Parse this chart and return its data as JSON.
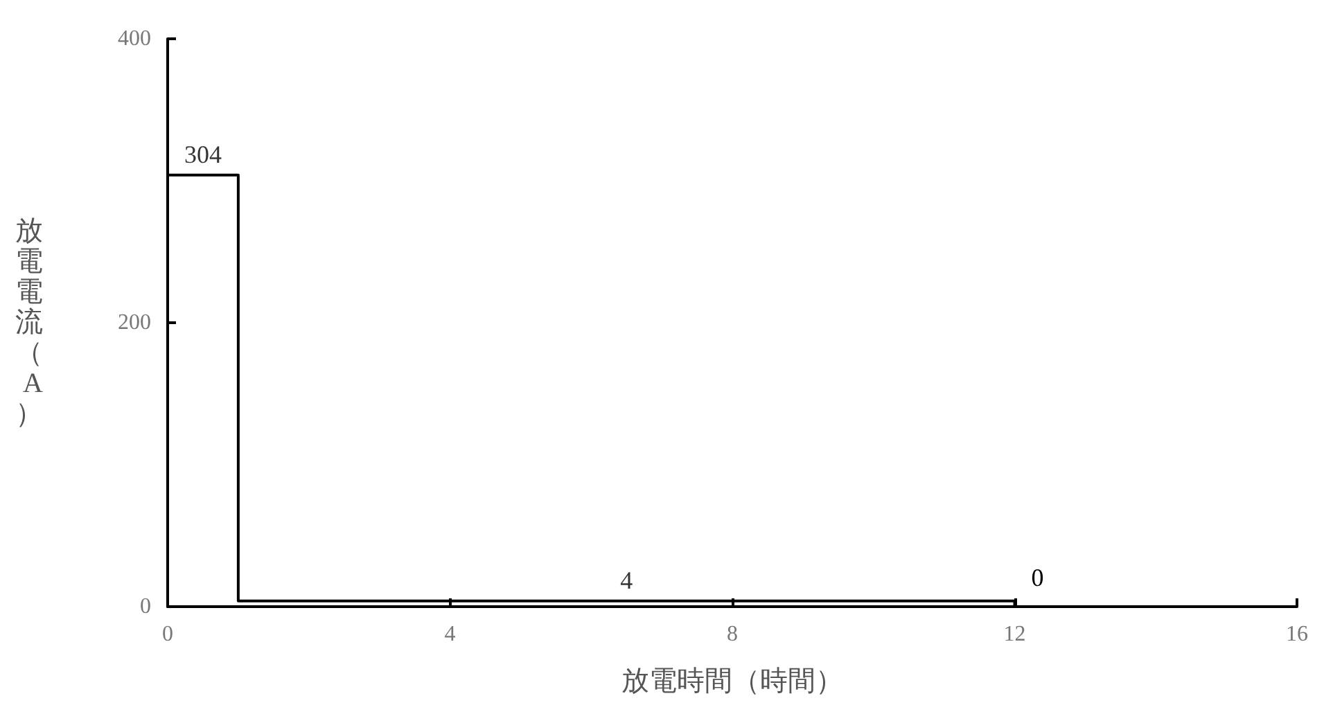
{
  "chart_data": {
    "type": "step",
    "xlabel": "放電時間（時間）",
    "ylabel": "放電電流（A）",
    "x": [
      0,
      1,
      12
    ],
    "series": [
      {
        "color": "#000000",
        "values": [
          304,
          4,
          0
        ]
      }
    ],
    "xlim": [
      0,
      16
    ],
    "xticks": [
      0,
      4,
      8,
      12,
      16
    ],
    "ylim": [
      0,
      400
    ],
    "yticks": [
      0,
      200,
      400
    ],
    "grid": false,
    "annotations": [
      {
        "text": "304",
        "x": 0.5,
        "y": 304
      },
      {
        "text": "4",
        "x": 6.5,
        "y": 4
      },
      "0"
    ]
  }
}
